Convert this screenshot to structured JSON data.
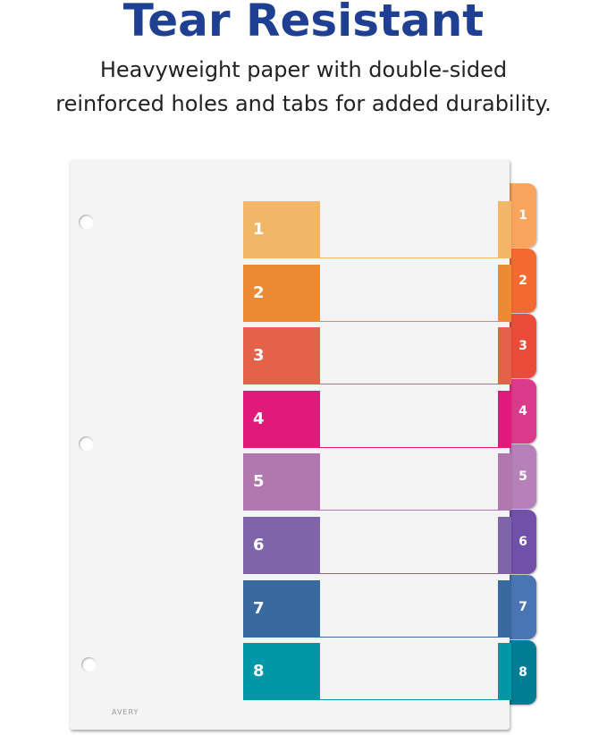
{
  "heading": "Tear Resistant",
  "subheading_lines": [
    "Heavyweight paper with double-sided",
    "reinforced holes and tabs for added durability."
  ],
  "logo_text": "AVERY",
  "dividers": [
    {
      "label": "1",
      "color": "#F2B766",
      "tab_color": "#F9A55E"
    },
    {
      "label": "2",
      "color": "#EB8A33",
      "tab_color": "#F26A30"
    },
    {
      "label": "3",
      "color": "#E4624A",
      "tab_color": "#EB4C3A"
    },
    {
      "label": "4",
      "color": "#E0197A",
      "tab_color": "#DA3A8A"
    },
    {
      "label": "5",
      "color": "#B178B0",
      "tab_color": "#B680B8"
    },
    {
      "label": "6",
      "color": "#7E64A8",
      "tab_color": "#7050A8"
    },
    {
      "label": "7",
      "color": "#386AA0",
      "tab_color": "#4A75B5"
    },
    {
      "label": "8",
      "color": "#0097A7",
      "tab_color": "#007D92"
    }
  ]
}
